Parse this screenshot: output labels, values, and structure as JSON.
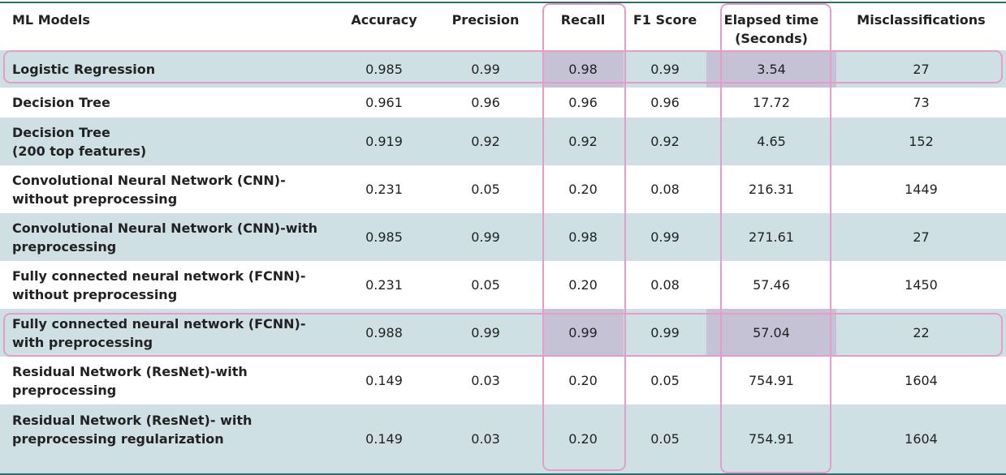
{
  "columns": [
    "ML Models",
    "Accuracy",
    "Precision",
    "Recall",
    "F1 Score",
    "Elapsed time\n(Seconds)",
    "Misclassifications"
  ],
  "rows": [
    {
      "model": "Logistic Regression",
      "accuracy": "0.985",
      "precision": "0.99",
      "recall": "0.98",
      "f1": "0.99",
      "elapsed": "3.54",
      "miscl": "27"
    },
    {
      "model": "Decision Tree",
      "accuracy": "0.961",
      "precision": "0.96",
      "recall": "0.96",
      "f1": "0.96",
      "elapsed": "17.72",
      "miscl": "73"
    },
    {
      "model": "Decision Tree\n(200 top features)",
      "accuracy": "0.919",
      "precision": "0.92",
      "recall": "0.92",
      "f1": "0.92",
      "elapsed": "4.65",
      "miscl": "152"
    },
    {
      "model": "Convolutional Neural Network (CNN)-\nwithout preprocessing",
      "accuracy": "0.231",
      "precision": "0.05",
      "recall": "0.20",
      "f1": "0.08",
      "elapsed": "216.31",
      "miscl": "1449"
    },
    {
      "model": "Convolutional Neural Network (CNN)-with\npreprocessing",
      "accuracy": "0.985",
      "precision": "0.99",
      "recall": "0.98",
      "f1": "0.99",
      "elapsed": "271.61",
      "miscl": "27"
    },
    {
      "model": "Fully connected neural network (FCNN)-\nwithout preprocessing",
      "accuracy": "0.231",
      "precision": "0.05",
      "recall": "0.20",
      "f1": "0.08",
      "elapsed": "57.46",
      "miscl": "1450"
    },
    {
      "model": "Fully connected neural network (FCNN)-\nwith preprocessing",
      "accuracy": "0.988",
      "precision": "0.99",
      "recall": "0.99",
      "f1": "0.99",
      "elapsed": "57.04",
      "miscl": "22"
    },
    {
      "model": "Residual Network (ResNet)-with\npreprocessing",
      "accuracy": "0.149",
      "precision": "0.03",
      "recall": "0.20",
      "f1": "0.05",
      "elapsed": "754.91",
      "miscl": "1604"
    },
    {
      "model": "Residual Network (ResNet)- with\npreprocessing regularization",
      "accuracy": "0.149",
      "precision": "0.03",
      "recall": "0.20",
      "f1": "0.05",
      "elapsed": "754.91",
      "miscl": "1604"
    }
  ],
  "colors": {
    "rule": "#2f6e6e",
    "shade": "#cfe0e4",
    "highlight_cell": "#c6c2d6",
    "highlight_outline": "#e59ccb"
  }
}
